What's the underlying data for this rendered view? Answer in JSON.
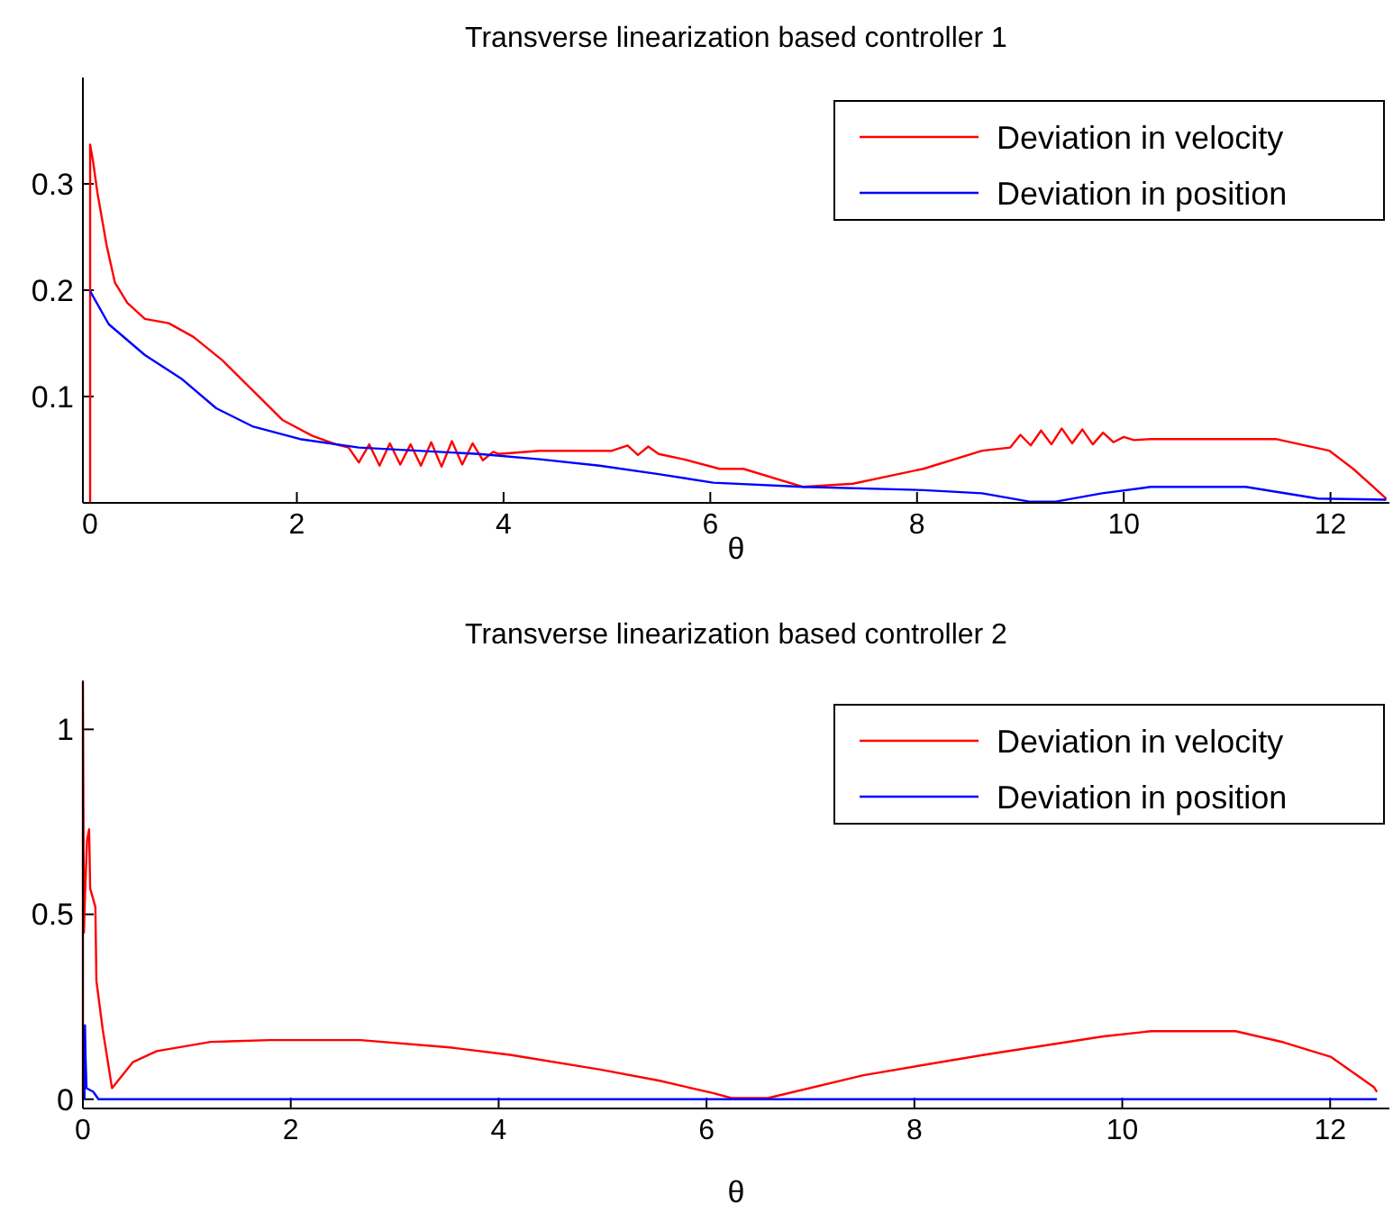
{
  "chart_data": [
    {
      "type": "line",
      "title": "Transverse linearization based controller 1",
      "xlabel": "θ",
      "xlim": [
        -0.07,
        12.57
      ],
      "xticks": [
        0,
        2,
        4,
        6,
        8,
        10,
        12
      ],
      "ylim": [
        0,
        0.4
      ],
      "yticks": [
        0.1,
        0.2,
        0.3
      ],
      "legend": "top right",
      "grid": false,
      "series": [
        {
          "name": "Deviation in velocity",
          "color": "#ff0000",
          "x": [
            0,
            0,
            0.03,
            0.07,
            0.16,
            0.24,
            0.36,
            0.53,
            0.76,
            1.0,
            1.28,
            1.57,
            1.86,
            2.15,
            2.38,
            2.5,
            2.6,
            2.7,
            2.8,
            2.9,
            3.0,
            3.1,
            3.2,
            3.3,
            3.4,
            3.5,
            3.6,
            3.7,
            3.8,
            3.9,
            3.95,
            4.35,
            5.05,
            5.2,
            5.3,
            5.4,
            5.5,
            5.74,
            6.09,
            6.32,
            6.9,
            7.38,
            8.06,
            8.63,
            8.9,
            9.0,
            9.1,
            9.2,
            9.3,
            9.4,
            9.5,
            9.6,
            9.7,
            9.8,
            9.9,
            10.0,
            10.1,
            10.26,
            11.47,
            11.99,
            12.22,
            12.54
          ],
          "values": [
            0,
            0.337,
            0.32,
            0.292,
            0.242,
            0.207,
            0.188,
            0.173,
            0.169,
            0.156,
            0.134,
            0.106,
            0.078,
            0.063,
            0.055,
            0.052,
            0.038,
            0.055,
            0.035,
            0.056,
            0.036,
            0.055,
            0.035,
            0.057,
            0.034,
            0.058,
            0.036,
            0.056,
            0.04,
            0.048,
            0.046,
            0.049,
            0.049,
            0.054,
            0.045,
            0.053,
            0.046,
            0.041,
            0.032,
            0.032,
            0.015,
            0.018,
            0.032,
            0.049,
            0.052,
            0.064,
            0.054,
            0.068,
            0.055,
            0.07,
            0.056,
            0.069,
            0.055,
            0.066,
            0.057,
            0.062,
            0.059,
            0.06,
            0.06,
            0.049,
            0.032,
            0.004
          ]
        },
        {
          "name": "Deviation in position",
          "color": "#0000ff",
          "x": [
            0,
            0.18,
            0.53,
            0.88,
            1.22,
            1.57,
            2.03,
            2.6,
            3.76,
            4.35,
            4.93,
            5.5,
            6.03,
            6.9,
            8.06,
            8.63,
            9.1,
            9.33,
            9.79,
            10.26,
            11.18,
            11.88,
            12.54
          ],
          "values": [
            0.199,
            0.168,
            0.139,
            0.117,
            0.089,
            0.072,
            0.06,
            0.052,
            0.046,
            0.041,
            0.035,
            0.027,
            0.019,
            0.015,
            0.012,
            0.009,
            0.001,
            0.001,
            0.009,
            0.015,
            0.015,
            0.004,
            0.003
          ]
        }
      ]
    },
    {
      "type": "line",
      "title": "Transverse linearization based controller 2",
      "xlabel": "θ",
      "xlim": [
        0,
        12.57
      ],
      "xticks": [
        0,
        2,
        4,
        6,
        8,
        10,
        12
      ],
      "ylim": [
        -0.025,
        1.13
      ],
      "yticks": [
        0,
        0.5,
        1
      ],
      "legend": "top right",
      "grid": false,
      "series": [
        {
          "name": "Deviation in velocity",
          "color": "#ff0000",
          "x": [
            0,
            0,
            0.01,
            0.02,
            0.04,
            0.06,
            0.07,
            0.12,
            0.13,
            0.19,
            0.28,
            0.48,
            0.71,
            1.23,
            1.8,
            2.67,
            3.53,
            4.11,
            4.98,
            5.55,
            6.07,
            6.24,
            6.59,
            7.51,
            8.67,
            9.82,
            10.28,
            11.09,
            11.55,
            12.01,
            12.42,
            12.45
          ],
          "values": [
            0,
            1.13,
            0.45,
            0.55,
            0.7,
            0.73,
            0.57,
            0.52,
            0.32,
            0.19,
            0.03,
            0.1,
            0.13,
            0.155,
            0.16,
            0.16,
            0.14,
            0.12,
            0.08,
            0.05,
            0.016,
            0.003,
            0.003,
            0.065,
            0.12,
            0.17,
            0.184,
            0.184,
            0.154,
            0.114,
            0.033,
            0.02
          ]
        },
        {
          "name": "Deviation in position",
          "color": "#0000ff",
          "x": [
            0.015,
            0.02,
            0.025,
            0.035,
            0.1,
            0.15,
            12.45
          ],
          "values": [
            0,
            0.2,
            0.12,
            0.03,
            0.02,
            0,
            0
          ]
        }
      ]
    }
  ]
}
